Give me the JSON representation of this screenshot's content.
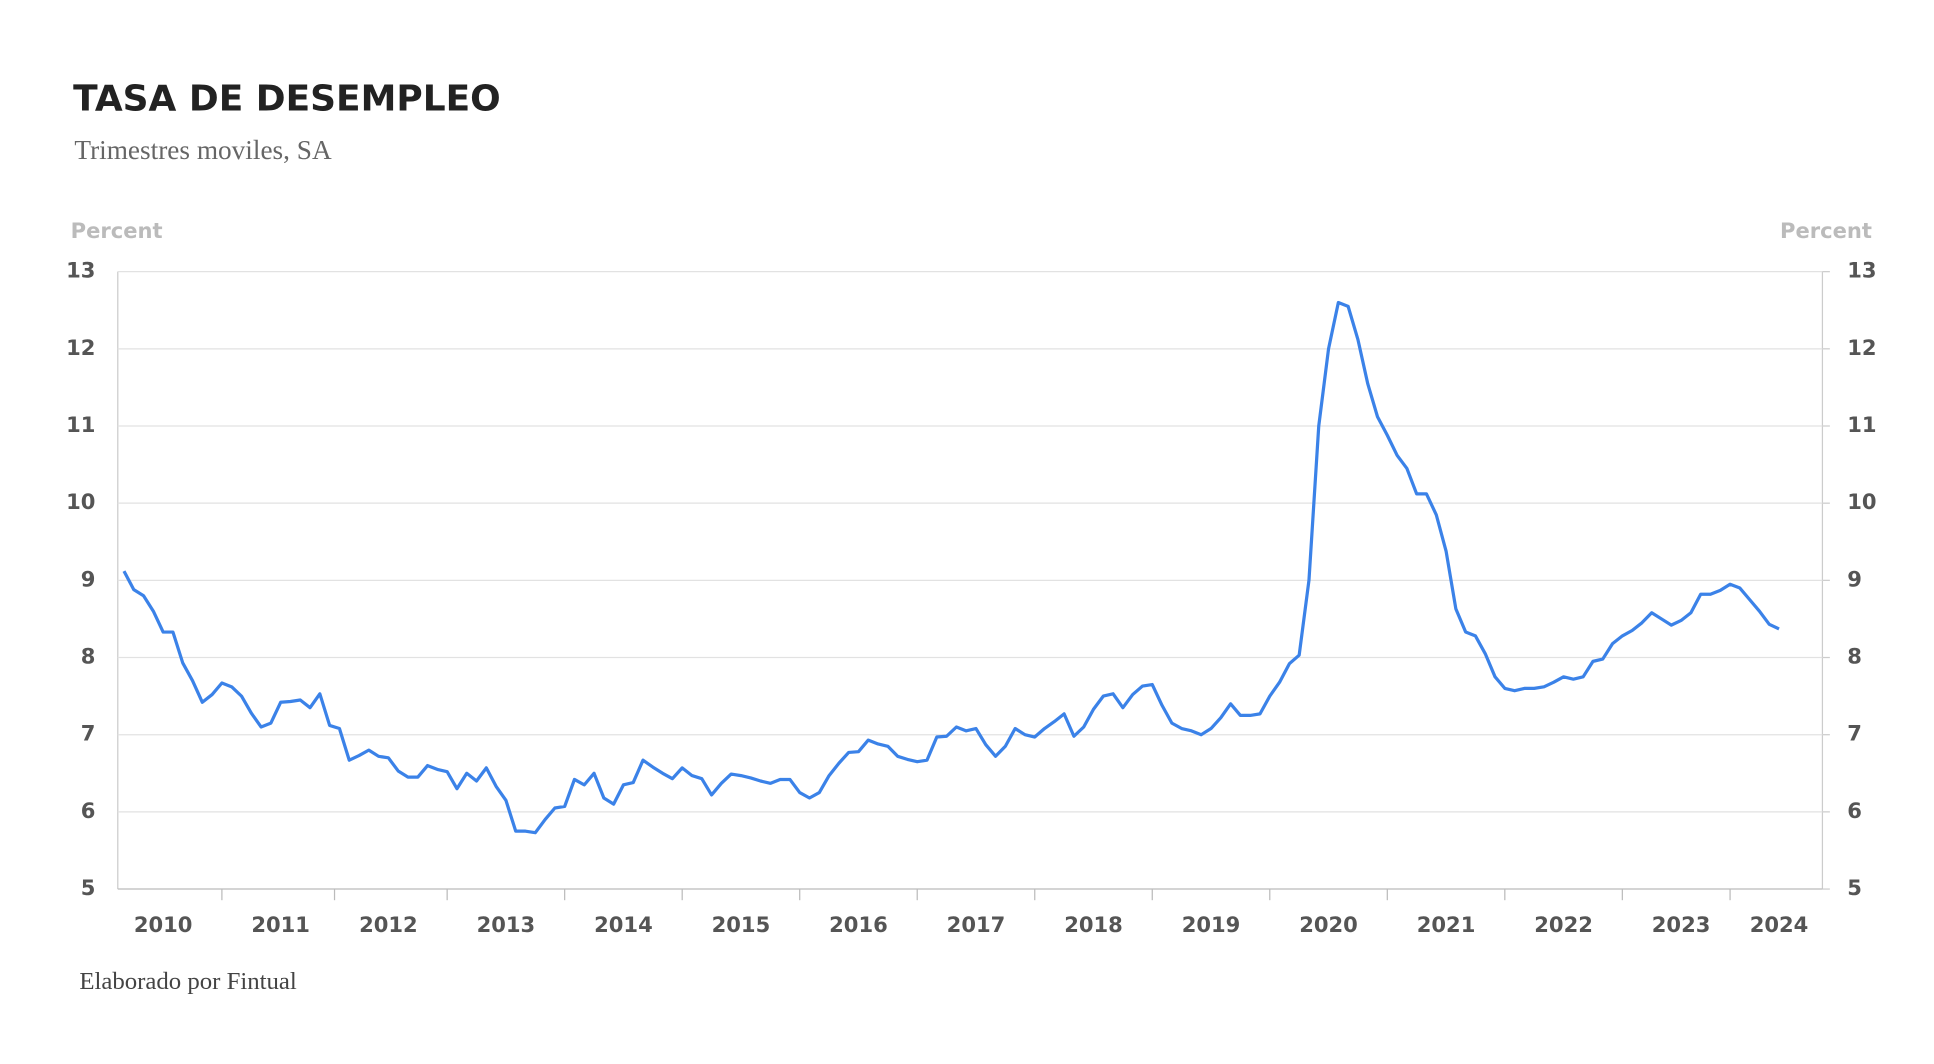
{
  "chart_data": {
    "type": "line",
    "title": "TASA DE DESEMPLEO",
    "subtitle": "Trimestres moviles, SA",
    "y_label": "Percent",
    "y2_label": "Percent",
    "source": "Elaborado por Fintual",
    "categories": [
      null,
      null,
      null,
      null,
      "2010",
      null,
      null,
      null,
      null,
      null,
      null,
      null,
      null,
      null,
      null,
      null,
      "2011",
      null,
      null,
      null,
      null,
      null,
      null,
      null,
      null,
      null,
      null,
      "2012",
      null,
      null,
      null,
      null,
      null,
      null,
      null,
      null,
      null,
      null,
      null,
      "2013",
      null,
      null,
      null,
      null,
      null,
      null,
      null,
      null,
      null,
      null,
      null,
      "2014",
      null,
      null,
      null,
      null,
      null,
      null,
      null,
      null,
      null,
      null,
      null,
      "2015",
      null,
      null,
      null,
      null,
      null,
      null,
      null,
      null,
      null,
      null,
      null,
      "2016",
      null,
      null,
      null,
      null,
      null,
      null,
      null,
      null,
      null,
      null,
      null,
      "2017",
      null,
      null,
      null,
      null,
      null,
      null,
      null,
      null,
      null,
      null,
      null,
      "2018",
      null,
      null,
      null,
      null,
      null,
      null,
      null,
      null,
      null,
      null,
      null,
      "2019",
      null,
      null,
      null,
      null,
      null,
      null,
      null,
      null,
      null,
      null,
      null,
      "2020",
      null,
      null,
      null,
      null,
      null,
      null,
      null,
      null,
      null,
      null,
      null,
      "2021",
      null,
      null,
      null,
      null,
      null,
      null,
      null,
      null,
      null,
      null,
      null,
      "2022",
      null,
      null,
      null,
      null,
      null,
      null,
      null,
      null,
      null,
      null,
      null,
      "2023",
      null,
      null,
      null,
      null,
      null,
      null,
      null,
      null,
      null,
      "2024"
    ],
    "values": [
      9.12,
      8.88,
      8.8,
      8.6,
      8.33,
      8.33,
      7.93,
      7.7,
      7.42,
      7.52,
      7.67,
      7.62,
      7.5,
      7.28,
      7.1,
      7.15,
      7.42,
      7.43,
      7.45,
      7.35,
      7.53,
      7.12,
      7.08,
      6.67,
      6.73,
      6.8,
      6.72,
      6.7,
      6.53,
      6.45,
      6.45,
      6.6,
      6.55,
      6.52,
      6.3,
      6.5,
      6.4,
      6.57,
      6.33,
      6.15,
      5.75,
      5.75,
      5.73,
      5.9,
      6.05,
      6.07,
      6.42,
      6.35,
      6.5,
      6.18,
      6.1,
      6.35,
      6.38,
      6.67,
      6.58,
      6.5,
      6.43,
      6.57,
      6.47,
      6.43,
      6.22,
      6.37,
      6.49,
      6.47,
      6.44,
      6.4,
      6.37,
      6.42,
      6.42,
      6.25,
      6.18,
      6.25,
      6.47,
      6.63,
      6.77,
      6.78,
      6.93,
      6.88,
      6.85,
      6.72,
      6.68,
      6.65,
      6.67,
      6.97,
      6.98,
      7.1,
      7.05,
      7.08,
      6.87,
      6.72,
      6.85,
      7.08,
      7.0,
      6.97,
      7.08,
      7.17,
      7.27,
      6.98,
      7.1,
      7.33,
      7.5,
      7.53,
      7.35,
      7.52,
      7.63,
      7.65,
      7.38,
      7.15,
      7.08,
      7.05,
      7.0,
      7.08,
      7.22,
      7.4,
      7.25,
      7.25,
      7.27,
      7.5,
      7.68,
      7.92,
      8.03,
      9.0,
      11.0,
      12.0,
      12.6,
      12.55,
      12.12,
      11.55,
      11.12,
      10.88,
      10.62,
      10.45,
      10.12,
      10.12,
      9.85,
      9.38,
      8.63,
      8.33,
      8.28,
      8.05,
      7.75,
      7.6,
      7.57,
      7.6,
      7.6,
      7.62,
      7.68,
      7.75,
      7.72,
      7.75,
      7.95,
      7.98,
      8.18,
      8.28,
      8.35,
      8.45,
      8.58,
      8.5,
      8.42,
      8.48,
      8.58,
      8.82,
      8.82,
      8.87,
      8.95,
      8.9,
      8.75,
      8.6,
      8.43,
      8.37
    ],
    "color": "#3b82e8",
    "ylim": [
      5,
      13
    ],
    "yticks": [
      5,
      6,
      7,
      8,
      9,
      10,
      11,
      12,
      13
    ],
    "y2lim": [
      5,
      13
    ],
    "y2ticks": [
      5,
      6,
      7,
      8,
      9,
      10,
      11,
      12,
      13
    ],
    "grid": true
  }
}
